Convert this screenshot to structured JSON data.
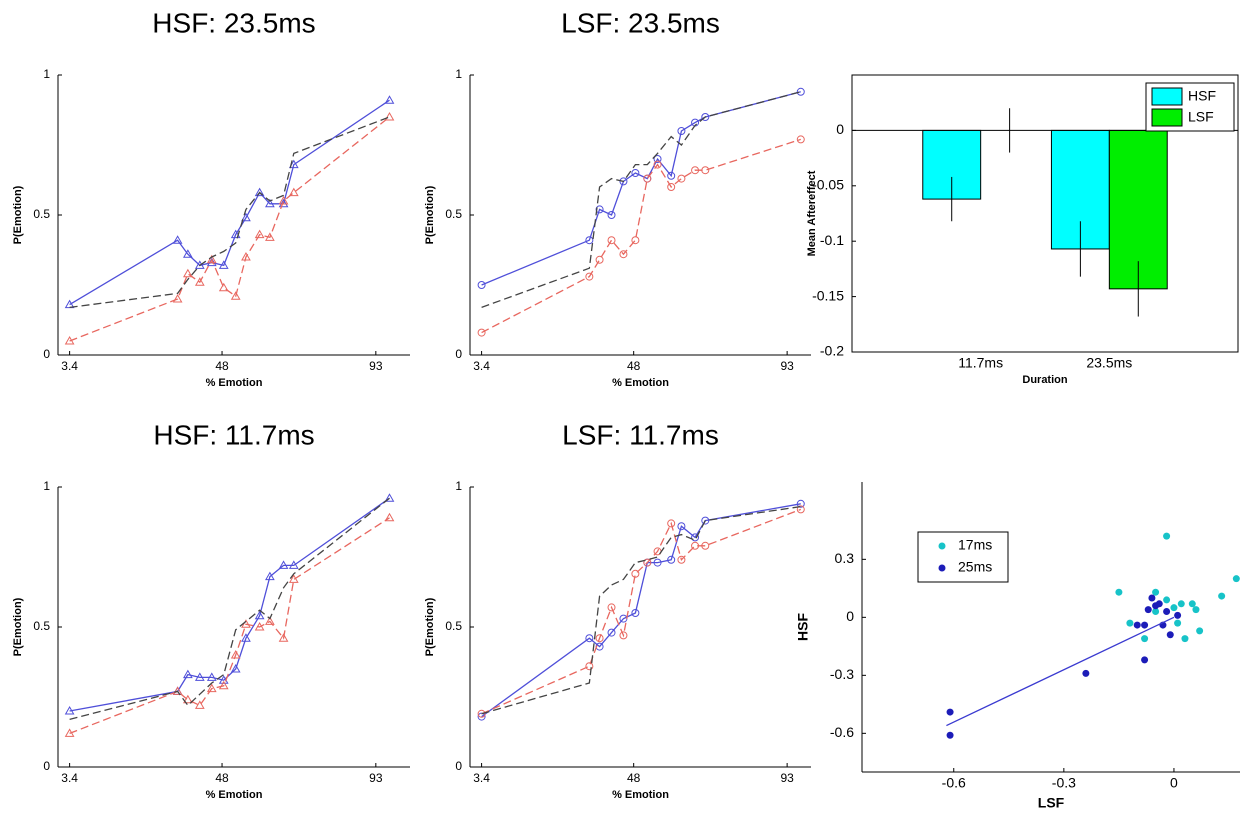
{
  "chart_data": [
    {
      "type": "line",
      "title": "HSF: 23.5ms",
      "x_label": "% Emotion",
      "y_label": "P(Emotion)",
      "x": [
        3.4,
        35,
        38,
        41.5,
        45,
        48.5,
        52,
        55,
        59,
        62,
        66,
        69,
        97
      ],
      "xlim": [
        0,
        103
      ],
      "xticks": [
        3.4,
        48,
        93
      ],
      "ylim": [
        0,
        1
      ],
      "yticks": [
        0,
        0.5,
        1
      ],
      "series": [
        {
          "color": "#4f4fd9",
          "marker": "triangle",
          "values": [
            0.18,
            0.41,
            0.36,
            0.32,
            0.33,
            0.32,
            0.43,
            0.49,
            0.58,
            0.54,
            0.54,
            0.68,
            0.91
          ]
        },
        {
          "color": "#e8675f",
          "dash": true,
          "marker": "triangle",
          "values": [
            0.05,
            0.2,
            0.29,
            0.26,
            0.34,
            0.24,
            0.21,
            0.35,
            0.43,
            0.42,
            0.55,
            0.58,
            0.85
          ]
        },
        {
          "color": "#444444",
          "dash": true,
          "values": [
            0.17,
            0.22,
            0.27,
            0.32,
            0.35,
            0.37,
            0.4,
            0.52,
            0.58,
            0.55,
            0.57,
            0.72,
            0.85
          ]
        }
      ]
    },
    {
      "type": "line",
      "title": "LSF: 23.5ms",
      "x_label": "% Emotion",
      "y_label": "P(Emotion)",
      "x": [
        3.4,
        35,
        38,
        41.5,
        45,
        48.5,
        52,
        55,
        59,
        62,
        66,
        69,
        97
      ],
      "xlim": [
        0,
        100
      ],
      "xticks": [
        3.4,
        48,
        93
      ],
      "ylim": [
        0,
        1
      ],
      "yticks": [
        0,
        0.5,
        1
      ],
      "series": [
        {
          "color": "#4f4fd9",
          "marker": "circle",
          "values": [
            0.25,
            0.41,
            0.52,
            0.5,
            0.62,
            0.65,
            0.63,
            0.7,
            0.64,
            0.8,
            0.83,
            0.85,
            0.94
          ]
        },
        {
          "color": "#e8675f",
          "dash": true,
          "marker": "circle",
          "values": [
            0.08,
            0.28,
            0.34,
            0.41,
            0.36,
            0.41,
            0.63,
            0.68,
            0.6,
            0.63,
            0.66,
            0.66,
            0.77
          ]
        },
        {
          "color": "#444444",
          "dash": true,
          "values": [
            0.17,
            0.31,
            0.6,
            0.63,
            0.62,
            0.68,
            0.68,
            0.72,
            0.78,
            0.75,
            0.82,
            0.85,
            0.94
          ]
        }
      ]
    },
    {
      "type": "bar",
      "x_label": "Duration",
      "y_label": "Mean Aftereffect",
      "categories": [
        "11.7ms",
        "23.5ms"
      ],
      "ylim": [
        -0.2,
        0.05
      ],
      "yticks": [
        -0.2,
        -0.15,
        -0.1,
        -0.05,
        0
      ],
      "legend": "upper-right",
      "series": [
        {
          "name": "HSF",
          "color": "#00ffff",
          "values": [
            -0.062,
            -0.107
          ],
          "errors": [
            0.02,
            0.025
          ]
        },
        {
          "name": "LSF",
          "color": "#00ee00",
          "values": [
            0,
            -0.143
          ],
          "errors": [
            0.02,
            0.025
          ]
        }
      ]
    },
    {
      "type": "line",
      "title": "HSF: 11.7ms",
      "x_label": "% Emotion",
      "y_label": "P(Emotion)",
      "x": [
        3.4,
        35,
        38,
        41.5,
        45,
        48.5,
        52,
        55,
        59,
        62,
        66,
        69,
        97
      ],
      "xlim": [
        0,
        103
      ],
      "xticks": [
        3.4,
        48,
        93
      ],
      "ylim": [
        0,
        1
      ],
      "yticks": [
        0,
        0.5,
        1
      ],
      "series": [
        {
          "color": "#4f4fd9",
          "marker": "triangle",
          "values": [
            0.2,
            0.27,
            0.33,
            0.32,
            0.32,
            0.31,
            0.35,
            0.46,
            0.54,
            0.68,
            0.72,
            0.72,
            0.96
          ]
        },
        {
          "color": "#e8675f",
          "dash": true,
          "marker": "triangle",
          "values": [
            0.12,
            0.27,
            0.24,
            0.22,
            0.28,
            0.29,
            0.4,
            0.51,
            0.5,
            0.52,
            0.46,
            0.67,
            0.89
          ]
        },
        {
          "color": "#444444",
          "dash": true,
          "values": [
            0.17,
            0.27,
            0.22,
            0.26,
            0.3,
            0.33,
            0.49,
            0.52,
            0.56,
            0.53,
            0.64,
            0.69,
            0.96
          ]
        }
      ]
    },
    {
      "type": "line",
      "title": "LSF: 11.7ms",
      "x_label": "% Emotion",
      "y_label": "P(Emotion)",
      "x": [
        3.4,
        35,
        38,
        41.5,
        45,
        48.5,
        52,
        55,
        59,
        62,
        66,
        69,
        97
      ],
      "xlim": [
        0,
        100
      ],
      "xticks": [
        3.4,
        48,
        93
      ],
      "ylim": [
        0,
        1
      ],
      "yticks": [
        0,
        0.5,
        1
      ],
      "series": [
        {
          "color": "#4f4fd9",
          "marker": "circle",
          "values": [
            0.18,
            0.46,
            0.43,
            0.48,
            0.53,
            0.55,
            0.73,
            0.73,
            0.74,
            0.86,
            0.82,
            0.88,
            0.94
          ]
        },
        {
          "color": "#e8675f",
          "dash": true,
          "marker": "circle",
          "values": [
            0.19,
            0.36,
            0.46,
            0.57,
            0.47,
            0.69,
            0.73,
            0.77,
            0.87,
            0.74,
            0.79,
            0.79,
            0.92
          ]
        },
        {
          "color": "#444444",
          "dash": true,
          "values": [
            0.19,
            0.3,
            0.61,
            0.65,
            0.67,
            0.73,
            0.74,
            0.75,
            0.82,
            0.83,
            0.81,
            0.88,
            0.93
          ]
        }
      ]
    },
    {
      "type": "scatter",
      "x_label": "LSF",
      "y_label": "HSF",
      "xlim": [
        -0.85,
        0.18
      ],
      "xticks": [
        -0.6,
        -0.3,
        0
      ],
      "ylim": [
        -0.8,
        0.7
      ],
      "yticks": [
        -0.6,
        -0.3,
        0,
        0.3
      ],
      "legend": "upper-left",
      "series": [
        {
          "name": "17ms",
          "color": "#17c3c8",
          "x": [
            -0.02,
            0.17,
            0.13,
            -0.15,
            -0.12,
            -0.05,
            -0.02,
            0.02,
            0.05,
            0.06,
            0.01,
            0.03,
            -0.08,
            0.07,
            -0.05,
            0.0
          ],
          "values": [
            0.42,
            0.2,
            0.11,
            0.13,
            -0.03,
            0.13,
            0.09,
            0.07,
            0.07,
            0.04,
            -0.03,
            -0.11,
            -0.11,
            -0.07,
            0.03,
            0.05
          ]
        },
        {
          "name": "25ms",
          "color": "#1c1cb8",
          "x": [
            -0.61,
            -0.61,
            -0.24,
            -0.08,
            -0.1,
            -0.08,
            -0.06,
            -0.05,
            -0.04,
            -0.03,
            -0.02,
            -0.01,
            0.01,
            -0.07
          ],
          "values": [
            -0.49,
            -0.61,
            -0.29,
            -0.22,
            -0.04,
            -0.04,
            0.1,
            0.06,
            0.07,
            -0.04,
            0.03,
            -0.09,
            0.01,
            0.04
          ]
        }
      ],
      "trend_line": {
        "color": "#3a3ad0",
        "x": [
          -0.62,
          0.0
        ],
        "y": [
          -0.56,
          0.0
        ]
      }
    }
  ]
}
